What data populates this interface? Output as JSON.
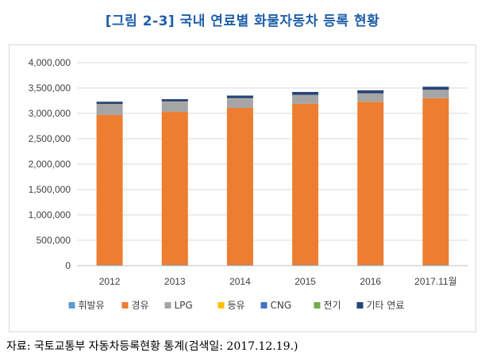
{
  "title": "[그림 2-3] 국내 연료별 화물자동차 등록 현황",
  "source": "자료: 국토교통부 자동차등록현황 통계(검색일: 2017.12.19.)",
  "chart_data": {
    "type": "bar",
    "stacked": true,
    "title": "[그림 2-3] 국내 연료별 화물자동차 등록 현황",
    "xlabel": "",
    "ylabel": "",
    "ylim": [
      0,
      4000000
    ],
    "y_ticks": [
      0,
      500000,
      1000000,
      1500000,
      2000000,
      2500000,
      3000000,
      3500000,
      4000000
    ],
    "y_tick_labels": [
      "0",
      "500,000",
      "1,000,000",
      "1,500,000",
      "2,000,000",
      "2,500,000",
      "3,000,000",
      "3,500,000",
      "4,000,000"
    ],
    "grid": true,
    "legend_position": "bottom",
    "categories": [
      "2012",
      "2013",
      "2014",
      "2015",
      "2016",
      "2017.11월"
    ],
    "series": [
      {
        "name": "휘발유",
        "color": "#5b9bd5",
        "values": [
          10000,
          10000,
          10000,
          10000,
          10000,
          10000
        ]
      },
      {
        "name": "경유",
        "color": "#ed7d31",
        "values": [
          2960000,
          3020000,
          3100000,
          3180000,
          3220000,
          3290000
        ]
      },
      {
        "name": "LPG",
        "color": "#a5a5a5",
        "values": [
          210000,
          200000,
          185000,
          170000,
          160000,
          160000
        ]
      },
      {
        "name": "등유",
        "color": "#ffc000",
        "values": [
          3000,
          3000,
          2000,
          2000,
          2000,
          2000
        ]
      },
      {
        "name": "CNG",
        "color": "#4472c4",
        "values": [
          2000,
          2000,
          2000,
          2000,
          2000,
          2000
        ]
      },
      {
        "name": "전기",
        "color": "#70ad47",
        "values": [
          500,
          500,
          600,
          700,
          1000,
          1500
        ]
      },
      {
        "name": "기타 연료",
        "color": "#264478",
        "values": [
          45000,
          45000,
          52000,
          58000,
          60000,
          60000
        ]
      }
    ]
  }
}
